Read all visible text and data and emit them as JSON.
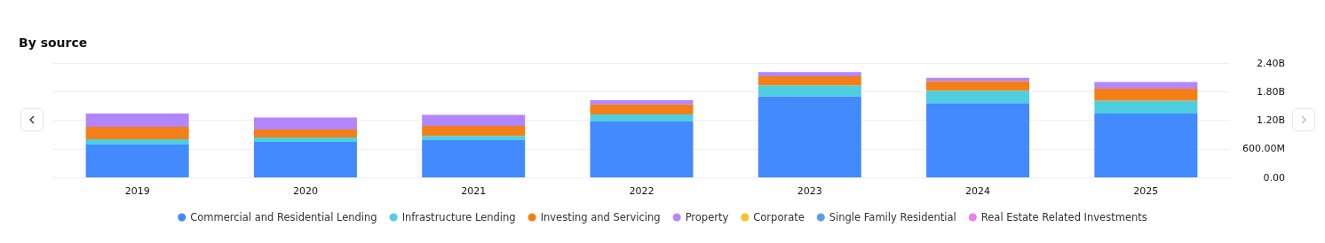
{
  "chart_data": {
    "type": "bar",
    "title": "By source",
    "stacked": true,
    "categories": [
      "2019",
      "2020",
      "2021",
      "2022",
      "2023",
      "2024",
      "2025"
    ],
    "series": [
      {
        "name": "Commercial and Residential Lending",
        "color": "#438afe",
        "values": [
          690000000,
          745000000,
          780000000,
          1170000000,
          1700000000,
          1560000000,
          1340000000
        ]
      },
      {
        "name": "Infrastructure Lending",
        "color": "#4ecfe0",
        "values": [
          110000000,
          90000000,
          90000000,
          150000000,
          230000000,
          260000000,
          270000000
        ]
      },
      {
        "name": "Investing and Servicing",
        "color": "#f47f17",
        "values": [
          260000000,
          170000000,
          210000000,
          210000000,
          190000000,
          200000000,
          250000000
        ]
      },
      {
        "name": "Property",
        "color": "#b286fc",
        "values": [
          280000000,
          250000000,
          230000000,
          90000000,
          90000000,
          70000000,
          140000000
        ]
      },
      {
        "name": "Corporate",
        "color": "#f8c12d",
        "values": [
          null,
          null,
          null,
          null,
          null,
          null,
          null
        ]
      },
      {
        "name": "Single Family Residential",
        "color": "#5b9cf6",
        "values": [
          null,
          null,
          null,
          null,
          null,
          null,
          null
        ]
      },
      {
        "name": "Real Estate Related Investments",
        "color": "#e97ef0",
        "values": [
          null,
          null,
          null,
          null,
          null,
          null,
          null
        ]
      }
    ],
    "ylim": [
      0,
      2400000000
    ],
    "yticks": [
      {
        "value": 0,
        "label": "0.00"
      },
      {
        "value": 600000000,
        "label": "600.00M"
      },
      {
        "value": 1200000000,
        "label": "1.20B"
      },
      {
        "value": 1800000000,
        "label": "1.80B"
      },
      {
        "value": 2400000000,
        "label": "2.40B"
      }
    ],
    "grid": "y",
    "legend": "bottom"
  }
}
